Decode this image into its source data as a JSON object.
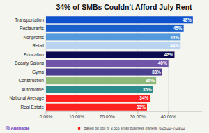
{
  "chart_data": {
    "type": "bar",
    "orientation": "horizontal",
    "title": "34% of SMBs Couldn't Afford July Rent",
    "categories": [
      "Real Estate",
      "National Average",
      "Automotive",
      "Construction",
      "Gyms",
      "Beauty Salons",
      "Education",
      "Retail",
      "Nonprofits",
      "Restaurants",
      "Transportation"
    ],
    "values": [
      33,
      34,
      35,
      36,
      38,
      40,
      42,
      44,
      44,
      45,
      48
    ],
    "value_labels": [
      "33%",
      "34%",
      "35%",
      "36%",
      "38%",
      "40%",
      "42%",
      "44%",
      "44%",
      "45%",
      "48%"
    ],
    "colors": [
      "#ff2020",
      "#ff2020",
      "#2e8b8b",
      "#8db87a",
      "#4a3f8f",
      "#7054a8",
      "#0d0a52",
      "#b8d4f0",
      "#5599dd",
      "#1a60cc",
      "#0f50cc"
    ],
    "xlim": [
      0,
      51
    ],
    "xticks": [
      {
        "value": 0,
        "label": "0.00%"
      },
      {
        "value": 10,
        "label": "10.00%"
      },
      {
        "value": 20,
        "label": "20.00%"
      },
      {
        "value": 30,
        "label": "30.00%"
      },
      {
        "value": 40,
        "label": "40.00%"
      }
    ],
    "grid": true,
    "data_labels": true,
    "annotations": [
      "Ⓠ Alignable",
      "■",
      "Based on poll of 3,555 small business owners, 6/25/22–7/29/22"
    ]
  }
}
